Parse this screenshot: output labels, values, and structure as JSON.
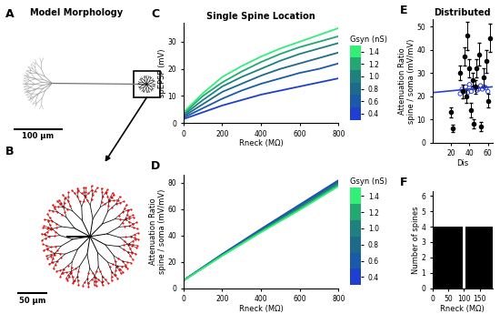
{
  "morphology": {
    "A": {
      "label": "A",
      "title": "Model Morphology",
      "scale_bar": "100 µm"
    },
    "B": {
      "label": "B",
      "scale_bar": "50 µm"
    }
  },
  "chart_data": [
    {
      "label": "C",
      "type": "line",
      "title": "Single Spine Location",
      "x": [
        0,
        100,
        200,
        300,
        400,
        500,
        600,
        700,
        800
      ],
      "series": [
        {
          "color": "#1f3fd0",
          "values": [
            1.5,
            4,
            6.5,
            8.5,
            10.5,
            12,
            13.5,
            15,
            16.5
          ]
        },
        {
          "color": "#1b5aa8",
          "values": [
            2,
            5.5,
            9,
            12,
            14.5,
            16.5,
            18.5,
            20,
            22
          ]
        },
        {
          "color": "#1e6a8a",
          "values": [
            2.5,
            7,
            11.5,
            14.5,
            17.5,
            20,
            22,
            24,
            26
          ]
        },
        {
          "color": "#1f8080",
          "values": [
            3,
            8.5,
            13.5,
            17,
            20,
            23,
            25.5,
            27.5,
            29.5
          ]
        },
        {
          "color": "#22a870",
          "values": [
            3.5,
            10,
            15,
            19,
            22.5,
            25.5,
            28,
            30,
            32
          ]
        },
        {
          "color": "#33ee77",
          "values": [
            4,
            11,
            17,
            21,
            24.5,
            27.5,
            30,
            32.5,
            35
          ]
        }
      ],
      "xlim": [
        0,
        800
      ],
      "xticks": [
        0,
        200,
        400,
        600,
        800
      ],
      "ylim": [
        0,
        37
      ],
      "yticks": [
        0,
        10,
        20,
        30
      ],
      "xlabel": "Rneck (MΩ)",
      "ylabel": "spEPSP (mV)",
      "colorbar": {
        "title": "Gsyn (nS)",
        "range": [
          0.3,
          1.5
        ],
        "ticks": [
          0.4,
          0.6,
          0.8,
          1.0,
          1.2,
          1.4
        ]
      }
    },
    {
      "label": "D",
      "type": "line",
      "x": [
        0,
        200,
        400,
        600,
        800
      ],
      "series": [
        {
          "color": "#1f3fd0",
          "values": [
            6,
            26,
            45,
            63.5,
            82
          ]
        },
        {
          "color": "#1b5aa8",
          "values": [
            6,
            25.8,
            44.6,
            63,
            81.3
          ]
        },
        {
          "color": "#1e6a8a",
          "values": [
            6,
            25.5,
            44,
            62,
            80.5
          ]
        },
        {
          "color": "#1f8080",
          "values": [
            6,
            25.3,
            43.5,
            61.3,
            79.5
          ]
        },
        {
          "color": "#22a870",
          "values": [
            6,
            25,
            43,
            60.5,
            78.5
          ]
        },
        {
          "color": "#33ee77",
          "values": [
            5.8,
            24.7,
            42.5,
            59.5,
            77.5
          ]
        }
      ],
      "xlim": [
        0,
        800
      ],
      "xticks": [
        0,
        200,
        400,
        600,
        800
      ],
      "ylim": [
        0,
        86
      ],
      "yticks": [
        0,
        20,
        40,
        60,
        80
      ],
      "xlabel": "Rneck (MΩ)",
      "ylabel": "Attenuation Ratio\nspine / soma (mV/mV)",
      "colorbar": {
        "title": "Gsyn (nS)",
        "range": [
          0.3,
          1.5
        ],
        "ticks": [
          0.4,
          0.6,
          0.8,
          1.0,
          1.2,
          1.4
        ]
      }
    },
    {
      "label": "E",
      "type": "scatter",
      "title": "Distributed",
      "series": [
        {
          "type": "scatter",
          "marker": "filled",
          "color": "#000000",
          "x": [
            20,
            22,
            30,
            33,
            35,
            37,
            38,
            40,
            42,
            44,
            45,
            47,
            48,
            50,
            52,
            55,
            58,
            60,
            62
          ],
          "values": [
            13,
            6,
            30,
            22,
            37,
            20,
            46,
            32,
            14,
            27,
            8,
            24,
            32,
            38,
            7,
            28,
            35,
            18,
            45
          ],
          "errors": [
            2,
            1.5,
            3,
            3,
            4,
            3,
            6,
            4,
            3,
            3,
            2,
            3,
            4,
            5,
            2,
            4,
            5,
            3,
            6
          ]
        },
        {
          "type": "scatter",
          "marker": "open",
          "color": "#2b3fd6",
          "x": [
            30,
            32,
            34,
            36,
            38,
            40,
            42,
            44,
            46,
            48,
            50,
            52,
            54,
            56,
            58,
            60
          ],
          "values": [
            21,
            23,
            22,
            24,
            21.5,
            25,
            22,
            23.5,
            24,
            22.5,
            23,
            24.5,
            23,
            24,
            23.5,
            22
          ]
        },
        {
          "type": "line",
          "color": "#2b3fd6",
          "x": [
            0,
            65
          ],
          "values": [
            21.5,
            24
          ]
        }
      ],
      "xlim": [
        0,
        65
      ],
      "xticks": [
        20,
        40,
        60
      ],
      "ylim": [
        0,
        53
      ],
      "yticks": [
        0,
        10,
        20,
        30,
        40,
        50
      ],
      "xlabel": "Dis",
      "ylabel": "Attenuation Ratio\nspine / soma (mV/mV)"
    },
    {
      "label": "F",
      "type": "bar",
      "color": "#000000",
      "x": [
        50,
        150
      ],
      "values": [
        4,
        4
      ],
      "xlim": [
        0,
        190
      ],
      "xticks": [
        0,
        50,
        100,
        150
      ],
      "ylim": [
        0,
        6.3
      ],
      "yticks": [
        0,
        1,
        2,
        3,
        4,
        5,
        6
      ],
      "xlabel": "Rneck (MΩ)",
      "ylabel": "Number of spines"
    }
  ]
}
